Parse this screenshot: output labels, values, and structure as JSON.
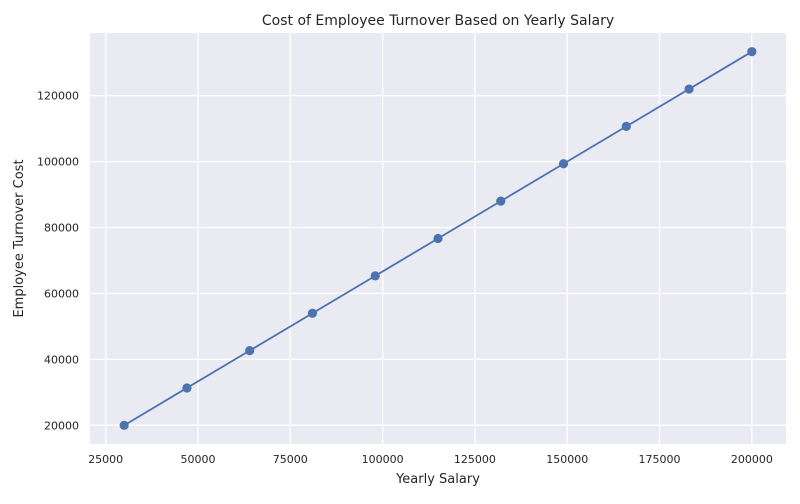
{
  "chart_data": {
    "type": "line",
    "title": "Cost of Employee Turnover Based on Yearly Salary",
    "xlabel": "Yearly Salary",
    "ylabel": "Employee Turnover Cost",
    "x": [
      30000,
      47000,
      64000,
      81000,
      98000,
      115000,
      132000,
      149000,
      166000,
      183000,
      200000
    ],
    "series": [
      {
        "values": [
          20000,
          31333,
          42667,
          54000,
          65333,
          76667,
          88000,
          99333,
          110667,
          122000,
          133333
        ]
      }
    ],
    "xlim": [
      20750,
      209250
    ],
    "ylim": [
      14333,
      139000
    ],
    "xticks": [
      25000,
      50000,
      75000,
      100000,
      125000,
      150000,
      175000,
      200000
    ],
    "yticks": [
      20000,
      40000,
      60000,
      80000,
      100000,
      120000
    ],
    "grid": true,
    "colors": {
      "line": "#4c72b0",
      "background": "#eaeaf2",
      "grid": "#ffffff"
    }
  }
}
